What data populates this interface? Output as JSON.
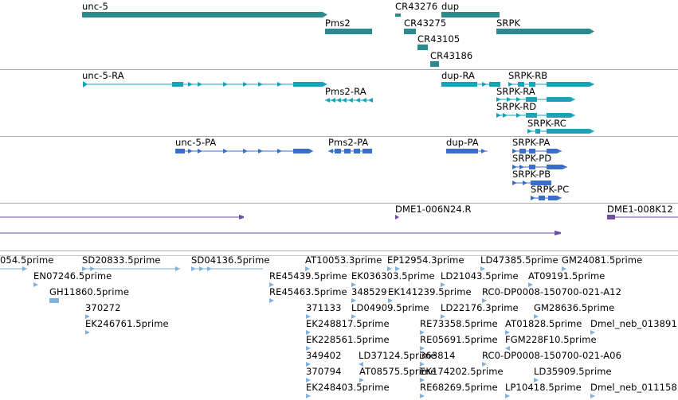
{
  "colors": {
    "gene": "#2a8a8c",
    "mrna": "#1aa3b8",
    "protein": "#3a6fc9",
    "clone": "#6f4fa0",
    "est": "#7fb2dc",
    "separator": "#a9a9a9"
  },
  "tracks": {
    "genes": {
      "unc5": "unc-5",
      "pms2": "Pms2",
      "cr43276": "CR43276",
      "dup": "dup",
      "cr43275": "CR43275",
      "cr43105": "CR43105",
      "cr43186": "CR43186",
      "srpk": "SRPK"
    },
    "transcripts": {
      "unc5_ra": "unc-5-RA",
      "pms2_ra": "Pms2-RA",
      "dup_ra": "dup-RA",
      "srpk_rb": "SRPK-RB",
      "srpk_ra": "SRPK-RA",
      "srpk_rd": "SRPK-RD",
      "srpk_rc": "SRPK-RC"
    },
    "proteins": {
      "unc5_pa": "unc-5-PA",
      "pms2_pa": "Pms2-PA",
      "dup_pa": "dup-PA",
      "srpk_pa": "SRPK-PA",
      "srpk_pd": "SRPK-PD",
      "srpk_pb": "SRPK-PB",
      "srpk_pc": "SRPK-PC"
    },
    "clones": {
      "c1": "DME1-006N24.R",
      "c2": "DME1-008K12"
    },
    "ests": {
      "e01": "054.5prime",
      "e02": "SD20833.5prime",
      "e03": "SD04136.5prime",
      "e04": "AT10053.3prime",
      "e05": "EP12954.3prime",
      "e06": "LD47385.5prime",
      "e07": "GM24081.5prime",
      "e08": "EN07246.5prime",
      "e09": "RE45439.5prime",
      "e10": "EK036303.5prime",
      "e11": "LD21043.5prime",
      "e12": "AT09191.5prime",
      "e13": "GH11860.5prime",
      "e14": "RE45463.5prime",
      "e15": "348529",
      "e16": "EK141239.5prime",
      "e17": "RC0-DP0008-150700-021-A12",
      "e18": "370272",
      "e19": "371133",
      "e20": "LD04909.5prime",
      "e21": "LD22176.3prime",
      "e22": "GM28636.5prime",
      "e23": "EK246761.5prime",
      "e24": "EK248817.5prime",
      "e25": "RE73358.5prime",
      "e26": "AT01828.5prime",
      "e27": "Dmel_neb_013891",
      "e28": "EK228561.5prime",
      "e29": "RE05691.5prime",
      "e30": "FGM228F10.5prime",
      "e31": "349402",
      "e32": "LD37124.5prime",
      "e33": "363814",
      "e34": "RC0-DP0008-150700-021-A06",
      "e35": "370794",
      "e36": "AT08575.5prime",
      "e37": "EK174202.5prime",
      "e38": "LD35909.5prime",
      "e39": "EK248403.5prime",
      "e40": "RE68269.5prime",
      "e41": "LP10418.5prime",
      "e42": "Dmel_neb_011158"
    }
  }
}
